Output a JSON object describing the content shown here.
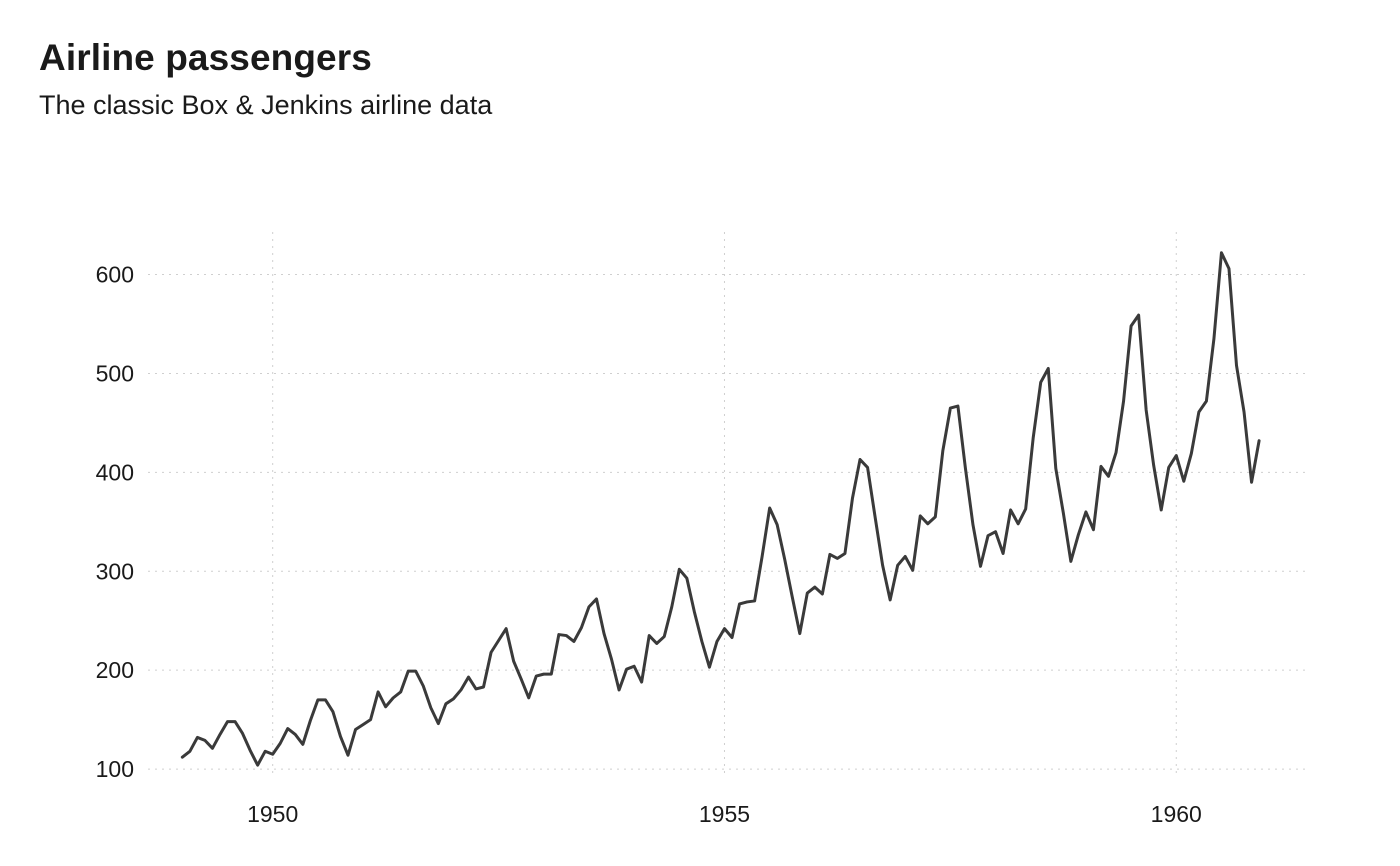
{
  "chart_data": {
    "type": "line",
    "title": "Airline passengers",
    "subtitle": "The classic Box & Jenkins airline data",
    "xlabel": "",
    "ylabel": "",
    "xlim": [
      1948.62,
      1961.48
    ],
    "ylim": [
      92,
      643
    ],
    "x_ticks": [
      1950,
      1955,
      1960
    ],
    "x_tick_labels": [
      "1950",
      "1955",
      "1960"
    ],
    "y_ticks": [
      100,
      200,
      300,
      400,
      500,
      600
    ],
    "y_tick_labels": [
      "100",
      "200",
      "300",
      "400",
      "500",
      "600"
    ],
    "grid": true,
    "legend": "none",
    "line_color": "#3a3a3a",
    "series": [
      {
        "x_start": 1949.0,
        "x_step": 0.0833333,
        "values": [
          112,
          118,
          132,
          129,
          121,
          135,
          148,
          148,
          136,
          119,
          104,
          118,
          115,
          126,
          141,
          135,
          125,
          149,
          170,
          170,
          158,
          133,
          114,
          140,
          145,
          150,
          178,
          163,
          172,
          178,
          199,
          199,
          184,
          162,
          146,
          166,
          171,
          180,
          193,
          181,
          183,
          218,
          230,
          242,
          209,
          191,
          172,
          194,
          196,
          196,
          236,
          235,
          229,
          243,
          264,
          272,
          237,
          211,
          180,
          201,
          204,
          188,
          235,
          227,
          234,
          264,
          302,
          293,
          259,
          229,
          203,
          229,
          242,
          233,
          267,
          269,
          270,
          315,
          364,
          347,
          312,
          274,
          237,
          278,
          284,
          277,
          317,
          313,
          318,
          374,
          413,
          405,
          355,
          306,
          271,
          306,
          315,
          301,
          356,
          348,
          355,
          422,
          465,
          467,
          404,
          347,
          305,
          336,
          340,
          318,
          362,
          348,
          363,
          435,
          491,
          505,
          404,
          359,
          310,
          337,
          360,
          342,
          406,
          396,
          420,
          472,
          548,
          559,
          463,
          407,
          362,
          405,
          417,
          391,
          419,
          461,
          472,
          535,
          622,
          606,
          508,
          461,
          390,
          432
        ]
      }
    ]
  }
}
